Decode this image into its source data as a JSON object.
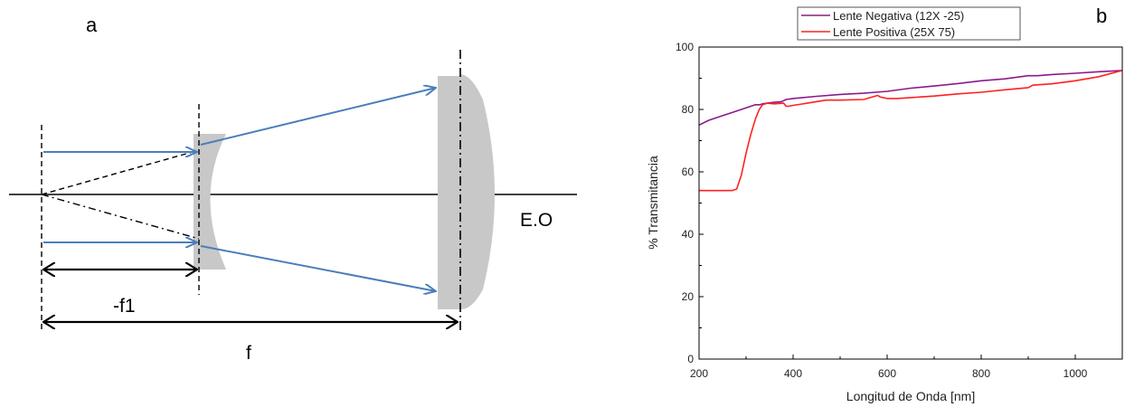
{
  "diagram": {
    "panel_label": "a",
    "axis_label": "E.O",
    "dim_f1_label": "-f1",
    "dim_f_label": "f",
    "ray_color": "#4a7ebb",
    "lens_color": "#c8c8c8"
  },
  "chart_data": {
    "type": "line",
    "panel_label": "b",
    "xlabel": "Longitud de Onda [nm]",
    "ylabel": "% Transmitancia",
    "xlim": [
      200,
      1100
    ],
    "ylim": [
      0,
      100
    ],
    "xticks": [
      200,
      400,
      600,
      800,
      1000
    ],
    "yticks": [
      0,
      20,
      40,
      60,
      80,
      100
    ],
    "grid": false,
    "legend_position": "top",
    "series": [
      {
        "name": "Lente Negativa (12X -25)",
        "color": "#8b1a8b",
        "x": [
          200,
          220,
          250,
          280,
          300,
          320,
          330,
          335,
          345,
          360,
          375,
          380,
          385,
          400,
          450,
          500,
          550,
          600,
          650,
          700,
          750,
          800,
          850,
          900,
          920,
          950,
          1000,
          1050,
          1100
        ],
        "y": [
          75,
          76.5,
          78,
          79.5,
          80.5,
          81.5,
          81.5,
          81.8,
          82,
          82.3,
          82.5,
          82.8,
          83.2,
          83.5,
          84.2,
          84.8,
          85.2,
          85.8,
          86.8,
          87.5,
          88.3,
          89.2,
          89.8,
          90.8,
          90.8,
          91.2,
          91.6,
          92.1,
          92.5
        ]
      },
      {
        "name": "Lente Positiva (25X 75)",
        "color": "#ff2020",
        "x": [
          200,
          250,
          270,
          280,
          290,
          300,
          310,
          320,
          328,
          335,
          345,
          360,
          380,
          385,
          390,
          400,
          430,
          470,
          500,
          550,
          580,
          585,
          600,
          620,
          650,
          700,
          750,
          800,
          850,
          900,
          910,
          950,
          1000,
          1050,
          1100
        ],
        "y": [
          54,
          54,
          54,
          54.5,
          59,
          66,
          72,
          77,
          80,
          81.5,
          82,
          81.8,
          82,
          81,
          81,
          81.3,
          82,
          83,
          83,
          83.2,
          84.5,
          84,
          83.5,
          83.5,
          83.8,
          84.3,
          85,
          85.5,
          86.3,
          87,
          87.8,
          88.2,
          89.2,
          90.5,
          92.5
        ]
      }
    ]
  }
}
